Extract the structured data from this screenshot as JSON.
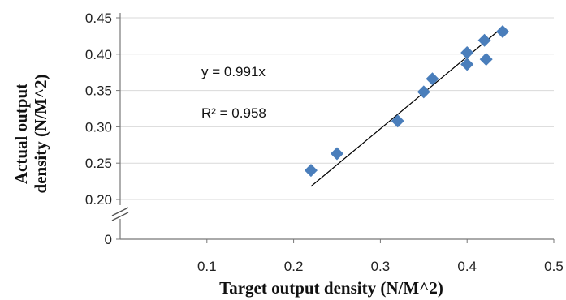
{
  "chart_data": {
    "type": "scatter",
    "xlabel": "Target output density (N/M^2)",
    "ylabel_lines": [
      "Actual output",
      "density (N/M^2)"
    ],
    "x_ticks": [
      "0.1",
      "0.2",
      "0.3",
      "0.4",
      "0.5"
    ],
    "y_ticks": [
      "0.20",
      "0.25",
      "0.30",
      "0.35",
      "0.40",
      "0.45"
    ],
    "y_break_tick": "0",
    "xlim": [
      0,
      0.5
    ],
    "ylim": [
      0.2,
      0.45
    ],
    "y_axis_break": true,
    "grid": "horizontal",
    "marker": "diamond",
    "marker_color": "#4a7ebb",
    "trendline_color": "#000000",
    "points": [
      {
        "x": 0.22,
        "y": 0.24
      },
      {
        "x": 0.25,
        "y": 0.263
      },
      {
        "x": 0.32,
        "y": 0.308
      },
      {
        "x": 0.35,
        "y": 0.348
      },
      {
        "x": 0.36,
        "y": 0.366
      },
      {
        "x": 0.4,
        "y": 0.402
      },
      {
        "x": 0.4,
        "y": 0.386
      },
      {
        "x": 0.42,
        "y": 0.419
      },
      {
        "x": 0.422,
        "y": 0.393
      },
      {
        "x": 0.441,
        "y": 0.431
      }
    ],
    "trendline": {
      "slope": 0.991,
      "x_range": [
        0.22,
        0.44
      ]
    },
    "annotations": {
      "equation": "y = 0.991x",
      "r_squared": "R² = 0.958"
    }
  }
}
